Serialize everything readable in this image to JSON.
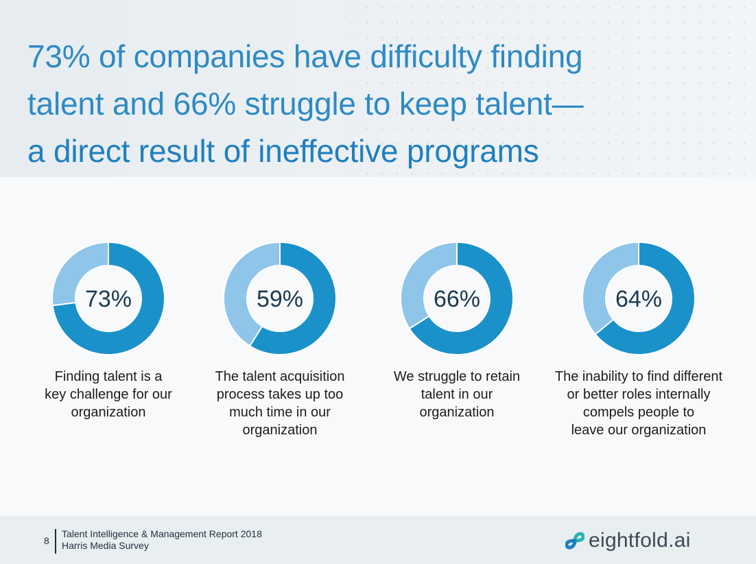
{
  "header": {
    "line1": "73% of companies have difficulty finding",
    "line2": "talent and 66% struggle to keep talent—",
    "line3": "a direct result of ineffective programs"
  },
  "chart_data": [
    {
      "type": "pie",
      "donut": true,
      "value": 73,
      "label": "73%",
      "caption": "Finding talent is a\nkey challenge for our\norganization",
      "colors": {
        "value": "#1a91c9",
        "remainder": "#8ec5e8"
      }
    },
    {
      "type": "pie",
      "donut": true,
      "value": 59,
      "label": "59%",
      "caption": "The talent acquisition\nprocess takes up too\nmuch time in our\norganization",
      "colors": {
        "value": "#1a91c9",
        "remainder": "#8ec5e8"
      }
    },
    {
      "type": "pie",
      "donut": true,
      "value": 66,
      "label": "66%",
      "caption": "We struggle to retain\ntalent in our\norganization",
      "colors": {
        "value": "#1a91c9",
        "remainder": "#8ec5e8"
      }
    },
    {
      "type": "pie",
      "donut": true,
      "value": 64,
      "label": "64%",
      "caption": "The inability to find different\nor better roles internally\ncompels people to\nleave our organization",
      "colors": {
        "value": "#1a91c9",
        "remainder": "#8ec5e8"
      }
    }
  ],
  "footer": {
    "page_number": "8",
    "source_line1": "Talent Intelligence & Management Report 2018",
    "source_line2": "Harris Media Survey",
    "logo_text": "eightfold.ai",
    "logo_icon": "infinity-link-icon",
    "logo_colors": {
      "teal": "#2bb3b1",
      "blue": "#1f7fc0"
    }
  }
}
